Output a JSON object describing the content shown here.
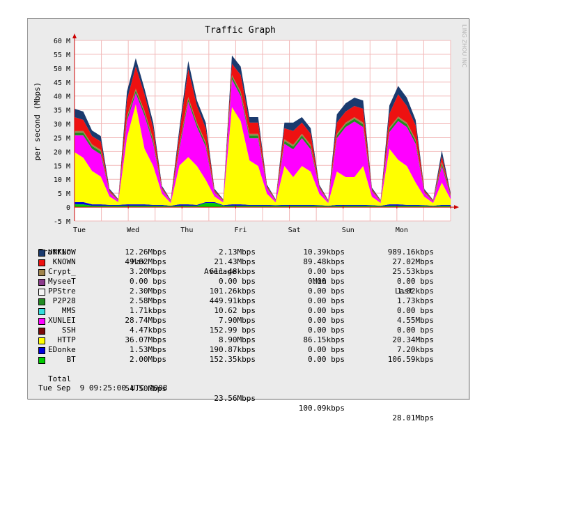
{
  "chart_data": {
    "type": "area",
    "title": "Traffic Graph",
    "ylabel": "per second (Mbps)",
    "watermark": "LING ZHOU INC",
    "ylim": [
      -5,
      60
    ],
    "yticks": [
      "-5 M",
      "0",
      "5 M",
      "10 M",
      "15 M",
      "20 M",
      "25 M",
      "30 M",
      "35 M",
      "40 M",
      "45 M",
      "50 M",
      "55 M",
      "60 M"
    ],
    "ytick_values": [
      -5,
      0,
      5,
      10,
      15,
      20,
      25,
      30,
      35,
      40,
      45,
      50,
      55,
      60
    ],
    "xticks": [
      "Tue",
      "Wed",
      "Thu",
      "Fri",
      "Sat",
      "Sun",
      "Mon"
    ],
    "grid": true,
    "x": [
      "Tue 00:00",
      "Tue 04:00",
      "Tue 08:00",
      "Tue 12:00",
      "Tue 16:00",
      "Tue 20:00",
      "Wed 00:00",
      "Wed 04:00",
      "Wed 08:00",
      "Wed 12:00",
      "Wed 16:00",
      "Wed 20:00",
      "Thu 00:00",
      "Thu 04:00",
      "Thu 08:00",
      "Thu 12:00",
      "Thu 16:00",
      "Thu 20:00",
      "Fri 00:00",
      "Fri 04:00",
      "Fri 08:00",
      "Fri 12:00",
      "Fri 16:00",
      "Fri 20:00",
      "Sat 00:00",
      "Sat 04:00",
      "Sat 08:00",
      "Sat 12:00",
      "Sat 16:00",
      "Sat 20:00",
      "Sun 00:00",
      "Sun 04:00",
      "Sun 08:00",
      "Sun 12:00",
      "Sun 16:00",
      "Sun 20:00",
      "Mon 00:00",
      "Mon 04:00",
      "Mon 08:00",
      "Mon 12:00",
      "Mon 16:00",
      "Mon 20:00",
      "Tue 00:00",
      "Tue 04:00"
    ],
    "series": [
      {
        "name": "BT",
        "color": "#00cc00",
        "values": [
          1.0,
          1.0,
          0.5,
          0.5,
          0.5,
          0.5,
          0.5,
          0.5,
          0.5,
          0.5,
          0.5,
          0.3,
          0.5,
          0.5,
          0.5,
          1.5,
          1.5,
          0.5,
          0.5,
          0.5,
          0.5,
          0.5,
          0.5,
          0.5,
          0.5,
          0.5,
          0.5,
          0.5,
          0.5,
          0.3,
          0.5,
          0.5,
          0.5,
          0.5,
          0.5,
          0.3,
          0.5,
          0.5,
          0.5,
          0.5,
          0.5,
          0.3,
          0.5,
          0.5
        ]
      },
      {
        "name": "EDonke",
        "color": "#0000dd",
        "values": [
          0.8,
          0.8,
          0.5,
          0.5,
          0.3,
          0.3,
          0.5,
          0.5,
          0.5,
          0.3,
          0.3,
          0.2,
          0.5,
          0.5,
          0.3,
          0.3,
          0.3,
          0.2,
          0.5,
          0.5,
          0.3,
          0.3,
          0.3,
          0.2,
          0.3,
          0.3,
          0.3,
          0.3,
          0.2,
          0.2,
          0.3,
          0.3,
          0.3,
          0.3,
          0.2,
          0.2,
          0.5,
          0.5,
          0.3,
          0.3,
          0.2,
          0.2,
          0.3,
          0.3
        ]
      },
      {
        "name": "HTTP",
        "color": "#ffff00",
        "values": [
          18,
          16,
          12,
          10,
          3,
          1,
          24,
          36,
          20,
          14,
          4,
          1,
          14,
          17,
          14,
          8,
          2,
          1,
          35,
          30,
          16,
          14,
          4,
          1,
          14,
          10,
          14,
          12,
          4,
          1,
          12,
          10,
          10,
          14,
          3,
          1,
          20,
          16,
          14,
          8,
          3,
          1,
          8,
          2
        ]
      },
      {
        "name": "XUNLEI",
        "color": "#ff00ff",
        "values": [
          6,
          8,
          8,
          8,
          1.5,
          0.5,
          6,
          4,
          12,
          8,
          1.5,
          0.5,
          6,
          20,
          14,
          12,
          1.5,
          0.5,
          10,
          9,
          8,
          10,
          2,
          0.5,
          8,
          10,
          10,
          8,
          2,
          0.5,
          12,
          18,
          20,
          14,
          2,
          0.5,
          6,
          14,
          14,
          14,
          1.5,
          0.5,
          6,
          1
        ]
      },
      {
        "name": "P2P28",
        "color": "#228b22",
        "values": [
          1,
          1,
          1,
          1,
          0.2,
          0.1,
          1,
          1,
          1,
          1,
          0.2,
          0.1,
          1,
          1,
          1,
          1,
          0.2,
          0.1,
          1,
          1,
          1,
          1,
          0.2,
          0.1,
          1,
          1,
          1,
          1,
          0.2,
          0.1,
          1,
          1,
          1,
          1,
          0.2,
          0.1,
          1,
          1,
          1,
          1,
          0.2,
          0.1,
          1,
          0.2
        ]
      },
      {
        "name": "Crypt_",
        "color": "#a0844c",
        "values": [
          0.6,
          0.6,
          0.6,
          0.6,
          0.1,
          0.1,
          0.6,
          0.6,
          0.6,
          0.6,
          0.1,
          0.1,
          0.6,
          0.6,
          0.6,
          0.6,
          0.1,
          0.1,
          0.6,
          0.6,
          0.6,
          0.6,
          0.1,
          0.1,
          0.6,
          0.6,
          0.6,
          0.6,
          0.1,
          0.1,
          0.6,
          0.6,
          0.6,
          0.6,
          0.1,
          0.1,
          0.6,
          0.6,
          0.6,
          0.6,
          0.1,
          0.1,
          0.6,
          0.1
        ]
      },
      {
        "name": "KNOWN",
        "color": "#ee1111",
        "values": [
          5,
          4,
          3,
          3,
          0.5,
          0.2,
          6,
          8,
          6,
          4,
          0.5,
          0.2,
          4,
          10,
          6,
          5,
          0.5,
          0.2,
          4,
          6,
          4,
          4,
          0.5,
          0.2,
          4,
          5,
          4,
          4,
          0.5,
          0.2,
          4,
          4,
          4,
          5,
          0.5,
          0.2,
          5,
          8,
          6,
          5,
          0.5,
          0.2,
          2,
          0.5
        ]
      },
      {
        "name": "UNKNOW",
        "color": "#1a3a6e",
        "values": [
          3,
          3,
          2,
          2,
          0.5,
          0.2,
          3,
          3,
          2,
          2,
          0.5,
          0.2,
          2,
          3,
          2,
          2,
          0.5,
          0.2,
          3,
          3,
          2,
          2,
          0.5,
          0.2,
          2,
          3,
          2,
          2,
          0.5,
          0.2,
          3,
          3,
          3,
          3,
          0.5,
          0.2,
          3,
          3,
          3,
          2,
          0.5,
          0.2,
          2,
          0.5
        ]
      }
    ],
    "legend_headers": [
      "Traffic",
      "Max",
      "Average",
      "Min",
      "Last"
    ],
    "legend": [
      {
        "name": "UNKNOW",
        "color": "#1a3a6e",
        "max": "12.26Mbps",
        "avg": "2.13Mbps",
        "min": "10.39kbps",
        "last": "989.16kbps"
      },
      {
        "name": "KNOWN",
        "color": "#ee1111",
        "max": "49.82Mbps",
        "avg": "21.43Mbps",
        "min": "89.48kbps",
        "last": "27.02Mbps"
      },
      {
        "name": "Crypt_",
        "color": "#a0844c",
        "max": "3.20Mbps",
        "avg": "611.48kbps",
        "min": "0.00 bps",
        "last": "25.53kbps"
      },
      {
        "name": "MyseeT",
        "color": "#8b3a8b",
        "max": "0.00 bps",
        "avg": "0.00 bps",
        "min": "0.00 bps",
        "last": "0.00 bps"
      },
      {
        "name": "PPStre",
        "color": "#f4f4f4",
        "max": "2.30Mbps",
        "avg": "101.26kbps",
        "min": "0.00 bps",
        "last": "1.02kbps"
      },
      {
        "name": "P2P28",
        "color": "#228b22",
        "max": "2.58Mbps",
        "avg": "449.91kbps",
        "min": "0.00 bps",
        "last": "1.73kbps"
      },
      {
        "name": "MMS",
        "color": "#33dddd",
        "max": "1.71kbps",
        "avg": "10.62 bps",
        "min": "0.00 bps",
        "last": "0.00 bps"
      },
      {
        "name": "XUNLEI",
        "color": "#ff00ff",
        "max": "28.74Mbps",
        "avg": "7.90Mbps",
        "min": "0.00 bps",
        "last": "4.55Mbps"
      },
      {
        "name": "SSH",
        "color": "#7a0a0a",
        "max": "4.47kbps",
        "avg": "152.99 bps",
        "min": "0.00 bps",
        "last": "0.00 bps"
      },
      {
        "name": "HTTP",
        "color": "#ffff00",
        "max": "36.07Mbps",
        "avg": "8.90Mbps",
        "min": "86.15kbps",
        "last": "20.34Mbps"
      },
      {
        "name": "EDonke",
        "color": "#0000dd",
        "max": "1.53Mbps",
        "avg": "190.87kbps",
        "min": "0.00 bps",
        "last": "7.20kbps"
      },
      {
        "name": "BT",
        "color": "#00cc00",
        "max": "2.00Mbps",
        "avg": "152.35kbps",
        "min": "0.00 bps",
        "last": "106.59kbps"
      }
    ],
    "total": {
      "name": "Total",
      "max": "54.50Mbps",
      "avg": "23.56Mbps",
      "min": "100.09kbps",
      "last": "28.01Mbps"
    },
    "timestamp": "Tue Sep  9 09:25:00 UTC 2008"
  }
}
